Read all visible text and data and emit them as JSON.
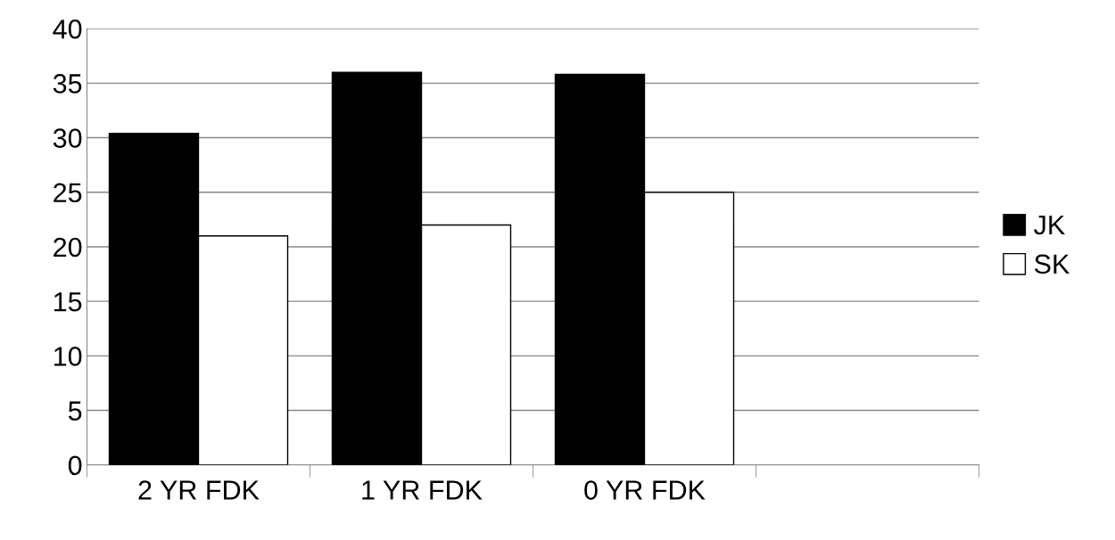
{
  "chart_data": {
    "type": "bar",
    "categories": [
      "2 YR FDK",
      "1 YR FDK",
      "0 YR FDK",
      null
    ],
    "series": [
      {
        "name": "JK",
        "color": "#000000",
        "values": [
          30.4,
          36.0,
          35.8,
          null
        ]
      },
      {
        "name": "SK",
        "color": "#ffffff",
        "values": [
          21.0,
          22.0,
          25.0,
          null
        ]
      }
    ],
    "ylim": [
      0,
      40
    ],
    "yticks": [
      0,
      5,
      10,
      15,
      20,
      25,
      30,
      35,
      40
    ],
    "grid": "y",
    "legend": "right"
  }
}
